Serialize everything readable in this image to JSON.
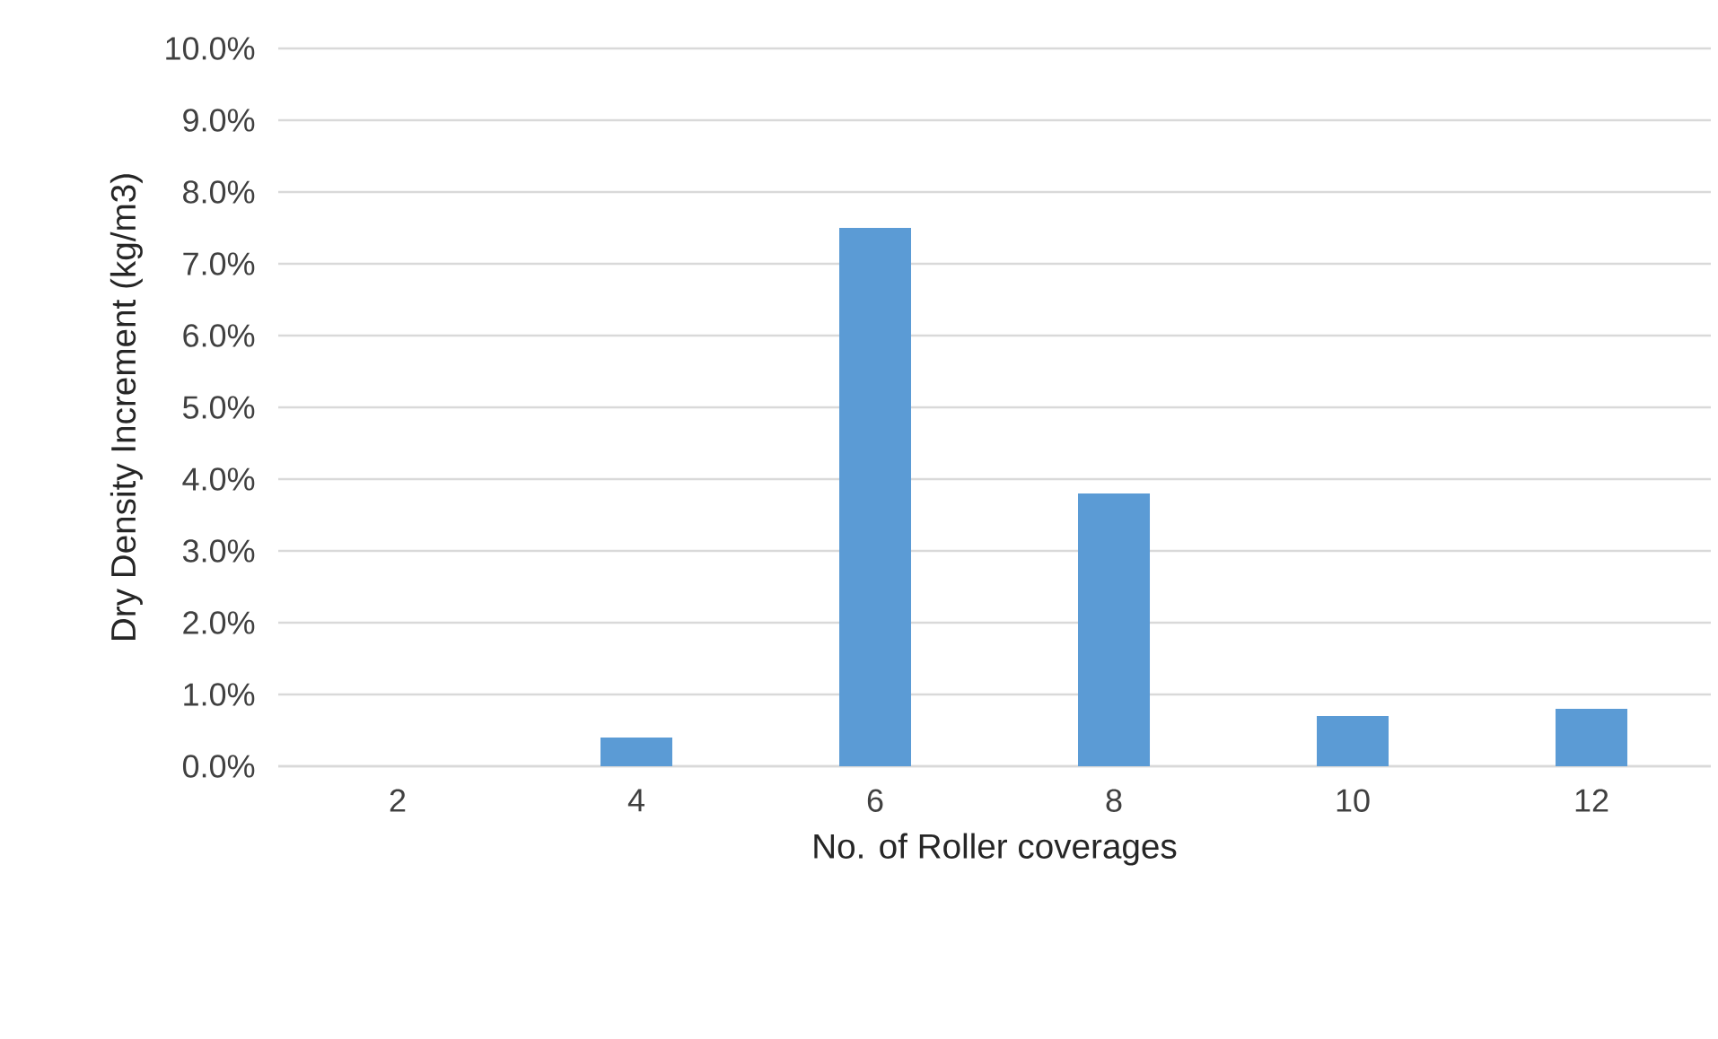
{
  "chart_data": {
    "type": "bar",
    "xlabel": "No. of Roller coverages",
    "ylabel": "Dry Density Increment (kg/m3)",
    "categories": [
      "2",
      "4",
      "6",
      "8",
      "10",
      "12"
    ],
    "values": [
      0,
      0.4,
      7.5,
      3.8,
      0.7,
      0.8
    ],
    "color": "#5b9bd5",
    "ylim": [
      0,
      10
    ],
    "yticks": [
      {
        "value": 0,
        "label": "0.0%"
      },
      {
        "value": 1,
        "label": "1.0%"
      },
      {
        "value": 2,
        "label": "2.0%"
      },
      {
        "value": 3,
        "label": "3.0%"
      },
      {
        "value": 4,
        "label": "4.0%"
      },
      {
        "value": 5,
        "label": "5.0%"
      },
      {
        "value": 6,
        "label": "6.0%"
      },
      {
        "value": 7,
        "label": "7.0%"
      },
      {
        "value": 8,
        "label": "8.0%"
      },
      {
        "value": 9,
        "label": "9.0%"
      },
      {
        "value": 10,
        "label": "10.0%"
      }
    ],
    "grid": "y"
  }
}
